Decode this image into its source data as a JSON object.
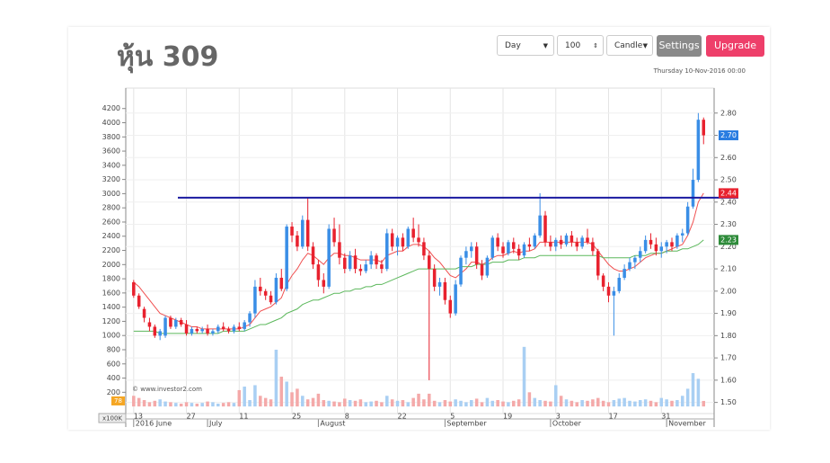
{
  "title": "หุ้น 309",
  "controls": {
    "interval": "Day",
    "count": "100",
    "style": "Candle",
    "settings": "Settings",
    "upgrade": "Upgrade"
  },
  "date": "Thursday 10-Nov-2016 00:00",
  "chart_data": {
    "type": "candlestick",
    "watermark": "© www.investor2.com",
    "volume_unit": "x100K",
    "xlim": [
      -1.5,
      110
    ],
    "ylim": [
      1.45,
      2.9
    ],
    "y2lim": [
      -100,
      4450
    ],
    "grid": true,
    "up_color": "#3a8ee6",
    "down_color": "#e8212e",
    "volume_up_color": "#a9cff3",
    "volume_down_color": "#f4a9a9",
    "xticks": [
      {
        "value": 0,
        "label": "13"
      },
      {
        "value": 10,
        "label": "27"
      },
      {
        "value": 20,
        "label": "11"
      },
      {
        "value": 30,
        "label": "25"
      },
      {
        "value": 40,
        "label": "8"
      },
      {
        "value": 50,
        "label": "22"
      },
      {
        "value": 60,
        "label": "5"
      },
      {
        "value": 70,
        "label": "19"
      },
      {
        "value": 80,
        "label": "3"
      },
      {
        "value": 90,
        "label": "17"
      },
      {
        "value": 100,
        "label": "31"
      }
    ],
    "month_ticks": [
      {
        "value": 0,
        "label": "2016 June"
      },
      {
        "value": 14,
        "label": "July"
      },
      {
        "value": 35,
        "label": "August"
      },
      {
        "value": 59,
        "label": "September"
      },
      {
        "value": 79,
        "label": "October"
      },
      {
        "value": 101,
        "label": "November"
      }
    ],
    "yticks": [
      {
        "value": 1.5,
        "label": "1.50"
      },
      {
        "value": 1.6,
        "label": "1.60"
      },
      {
        "value": 1.7,
        "label": "1.70"
      },
      {
        "value": 1.8,
        "label": "1.80"
      },
      {
        "value": 1.9,
        "label": "1.90"
      },
      {
        "value": 2.0,
        "label": "2.00"
      },
      {
        "value": 2.1,
        "label": "2.10"
      },
      {
        "value": 2.2,
        "label": "2.20"
      },
      {
        "value": 2.3,
        "label": "2.30"
      },
      {
        "value": 2.4,
        "label": "2.40"
      },
      {
        "value": 2.5,
        "label": "2.50"
      },
      {
        "value": 2.6,
        "label": "2.60"
      },
      {
        "value": 2.7,
        "label": "2.70"
      },
      {
        "value": 2.8,
        "label": "2.80"
      }
    ],
    "y2ticks": [
      200,
      400,
      600,
      800,
      1000,
      1200,
      1400,
      1600,
      1800,
      2000,
      2200,
      2400,
      2600,
      2800,
      3000,
      3200,
      3400,
      3600,
      3800,
      4000,
      4200
    ],
    "hline": {
      "value": 2.42,
      "color": "#1a1aa0"
    },
    "price_tags": [
      {
        "value": 2.7,
        "label": "2.70",
        "color": "#2a7de1"
      },
      {
        "value": 2.44,
        "label": "2.44",
        "color": "#e8212e"
      },
      {
        "value": 2.23,
        "label": "2.23",
        "color": "#2e8b3a"
      }
    ],
    "volume_tag": 78,
    "candles": [
      [
        2.04,
        2.05,
        1.97,
        1.98
      ],
      [
        1.98,
        1.99,
        1.92,
        1.93
      ],
      [
        1.92,
        1.93,
        1.86,
        1.88
      ],
      [
        1.86,
        1.88,
        1.82,
        1.84
      ],
      [
        1.84,
        1.85,
        1.79,
        1.8
      ],
      [
        1.8,
        1.83,
        1.78,
        1.82
      ],
      [
        1.8,
        1.89,
        1.79,
        1.88
      ],
      [
        1.88,
        1.89,
        1.83,
        1.84
      ],
      [
        1.84,
        1.88,
        1.83,
        1.87
      ],
      [
        1.87,
        1.88,
        1.84,
        1.85
      ],
      [
        1.85,
        1.87,
        1.8,
        1.81
      ],
      [
        1.81,
        1.84,
        1.8,
        1.83
      ],
      [
        1.83,
        1.84,
        1.81,
        1.82
      ],
      [
        1.82,
        1.84,
        1.81,
        1.83
      ],
      [
        1.83,
        1.85,
        1.8,
        1.81
      ],
      [
        1.81,
        1.83,
        1.8,
        1.82
      ],
      [
        1.82,
        1.85,
        1.81,
        1.84
      ],
      [
        1.84,
        1.86,
        1.82,
        1.83
      ],
      [
        1.83,
        1.84,
        1.81,
        1.82
      ],
      [
        1.82,
        1.85,
        1.81,
        1.84
      ],
      [
        1.84,
        1.86,
        1.82,
        1.83
      ],
      [
        1.83,
        1.87,
        1.82,
        1.86
      ],
      [
        1.86,
        1.91,
        1.84,
        1.9
      ],
      [
        1.9,
        2.05,
        1.88,
        2.02
      ],
      [
        2.02,
        2.06,
        1.98,
        2.0
      ],
      [
        2.0,
        2.01,
        1.96,
        1.98
      ],
      [
        1.98,
        2.0,
        1.94,
        1.95
      ],
      [
        1.95,
        2.08,
        1.94,
        2.06
      ],
      [
        2.06,
        2.1,
        2.0,
        2.01
      ],
      [
        2.01,
        2.3,
        2.0,
        2.29
      ],
      [
        2.29,
        2.31,
        2.22,
        2.25
      ],
      [
        2.25,
        2.27,
        2.18,
        2.2
      ],
      [
        2.2,
        2.34,
        2.19,
        2.32
      ],
      [
        2.32,
        2.42,
        2.18,
        2.2
      ],
      [
        2.2,
        2.22,
        2.1,
        2.12
      ],
      [
        2.12,
        2.14,
        2.02,
        2.05
      ],
      [
        2.05,
        2.08,
        1.99,
        2.02
      ],
      [
        2.02,
        2.3,
        2.01,
        2.28
      ],
      [
        2.28,
        2.33,
        2.2,
        2.22
      ],
      [
        2.22,
        2.3,
        2.12,
        2.15
      ],
      [
        2.15,
        2.17,
        2.08,
        2.1
      ],
      [
        2.1,
        2.18,
        2.09,
        2.16
      ],
      [
        2.16,
        2.19,
        2.08,
        2.1
      ],
      [
        2.1,
        2.12,
        2.07,
        2.09
      ],
      [
        2.09,
        2.14,
        2.08,
        2.12
      ],
      [
        2.12,
        2.18,
        2.1,
        2.16
      ],
      [
        2.16,
        2.17,
        2.1,
        2.12
      ],
      [
        2.12,
        2.14,
        2.08,
        2.1
      ],
      [
        2.1,
        2.28,
        2.09,
        2.26
      ],
      [
        2.26,
        2.28,
        2.18,
        2.2
      ],
      [
        2.2,
        2.25,
        2.16,
        2.24
      ],
      [
        2.24,
        2.26,
        2.18,
        2.2
      ],
      [
        2.2,
        2.29,
        2.19,
        2.28
      ],
      [
        2.28,
        2.33,
        2.22,
        2.24
      ],
      [
        2.24,
        2.3,
        2.2,
        2.22
      ],
      [
        2.22,
        2.24,
        2.14,
        2.16
      ],
      [
        2.16,
        2.18,
        1.6,
        2.1
      ],
      [
        2.1,
        2.12,
        2.0,
        2.02
      ],
      [
        2.02,
        2.06,
        1.98,
        2.04
      ],
      [
        2.04,
        2.06,
        1.94,
        1.96
      ],
      [
        1.96,
        1.98,
        1.88,
        1.9
      ],
      [
        1.9,
        2.05,
        1.89,
        2.03
      ],
      [
        2.03,
        2.16,
        2.02,
        2.15
      ],
      [
        2.15,
        2.2,
        2.12,
        2.18
      ],
      [
        2.18,
        2.22,
        2.15,
        2.2
      ],
      [
        2.2,
        2.22,
        2.1,
        2.12
      ],
      [
        2.12,
        2.14,
        2.05,
        2.07
      ],
      [
        2.07,
        2.16,
        2.06,
        2.15
      ],
      [
        2.15,
        2.25,
        2.14,
        2.24
      ],
      [
        2.24,
        2.26,
        2.18,
        2.2
      ],
      [
        2.2,
        2.22,
        2.15,
        2.17
      ],
      [
        2.17,
        2.23,
        2.16,
        2.22
      ],
      [
        2.22,
        2.24,
        2.17,
        2.19
      ],
      [
        2.19,
        2.21,
        2.14,
        2.16
      ],
      [
        2.16,
        2.22,
        2.15,
        2.21
      ],
      [
        2.21,
        2.24,
        2.18,
        2.2
      ],
      [
        2.2,
        2.26,
        2.19,
        2.25
      ],
      [
        2.25,
        2.44,
        2.24,
        2.34
      ],
      [
        2.34,
        2.36,
        2.2,
        2.22
      ],
      [
        2.22,
        2.25,
        2.18,
        2.2
      ],
      [
        2.2,
        2.24,
        2.18,
        2.23
      ],
      [
        2.23,
        2.25,
        2.19,
        2.21
      ],
      [
        2.21,
        2.26,
        2.2,
        2.25
      ],
      [
        2.25,
        2.27,
        2.2,
        2.22
      ],
      [
        2.22,
        2.24,
        2.18,
        2.2
      ],
      [
        2.2,
        2.25,
        2.19,
        2.24
      ],
      [
        2.24,
        2.28,
        2.21,
        2.22
      ],
      [
        2.22,
        2.24,
        2.16,
        2.18
      ],
      [
        2.18,
        2.19,
        2.05,
        2.07
      ],
      [
        2.07,
        2.08,
        2.0,
        2.02
      ],
      [
        2.02,
        2.04,
        1.95,
        1.98
      ],
      [
        1.98,
        2.02,
        1.8,
        2.0
      ],
      [
        2.0,
        2.08,
        1.99,
        2.06
      ],
      [
        2.06,
        2.12,
        2.05,
        2.1
      ],
      [
        2.1,
        2.15,
        2.09,
        2.13
      ],
      [
        2.13,
        2.16,
        2.1,
        2.15
      ],
      [
        2.15,
        2.2,
        2.13,
        2.18
      ],
      [
        2.18,
        2.25,
        2.17,
        2.23
      ],
      [
        2.23,
        2.26,
        2.19,
        2.21
      ],
      [
        2.21,
        2.24,
        2.16,
        2.18
      ],
      [
        2.18,
        2.22,
        2.15,
        2.2
      ],
      [
        2.2,
        2.23,
        2.17,
        2.22
      ],
      [
        2.22,
        2.24,
        2.18,
        2.2
      ],
      [
        2.2,
        2.26,
        2.19,
        2.25
      ],
      [
        2.25,
        2.28,
        2.22,
        2.26
      ],
      [
        2.26,
        2.4,
        2.25,
        2.38
      ],
      [
        2.38,
        2.55,
        2.37,
        2.5
      ],
      [
        2.5,
        2.8,
        2.49,
        2.77
      ],
      [
        2.77,
        2.78,
        2.66,
        2.7
      ]
    ],
    "volume": [
      150,
      120,
      90,
      60,
      80,
      100,
      70,
      60,
      50,
      40,
      60,
      50,
      40,
      50,
      70,
      60,
      40,
      50,
      60,
      50,
      230,
      280,
      90,
      300,
      150,
      120,
      100,
      800,
      420,
      350,
      200,
      250,
      150,
      100,
      120,
      180,
      90,
      80,
      70,
      60,
      110,
      90,
      80,
      100,
      60,
      70,
      80,
      60,
      150,
      100,
      80,
      90,
      60,
      120,
      180,
      100,
      180,
      80,
      60,
      90,
      70,
      100,
      80,
      60,
      90,
      110,
      60,
      120,
      80,
      90,
      70,
      60,
      80,
      100,
      840,
      200,
      120,
      90,
      80,
      70,
      300,
      150,
      100,
      80,
      60,
      90,
      80,
      100,
      120,
      80,
      60,
      90,
      110,
      120,
      80,
      70,
      90,
      100,
      80,
      60,
      120,
      100,
      80,
      90,
      150,
      250,
      470,
      390,
      78
    ],
    "ma_fast": {
      "color": "#f05050",
      "values": [
        2.04,
        2.02,
        1.99,
        1.96,
        1.93,
        1.9,
        1.89,
        1.88,
        1.87,
        1.86,
        1.85,
        1.84,
        1.84,
        1.83,
        1.83,
        1.83,
        1.83,
        1.83,
        1.83,
        1.83,
        1.83,
        1.84,
        1.85,
        1.88,
        1.91,
        1.92,
        1.93,
        1.95,
        1.97,
        2.03,
        2.07,
        2.1,
        2.14,
        2.17,
        2.16,
        2.14,
        2.12,
        2.15,
        2.17,
        2.17,
        2.16,
        2.16,
        2.15,
        2.14,
        2.14,
        2.14,
        2.14,
        2.13,
        2.16,
        2.17,
        2.18,
        2.18,
        2.2,
        2.21,
        2.21,
        2.2,
        2.18,
        2.15,
        2.13,
        2.1,
        2.07,
        2.06,
        2.08,
        2.1,
        2.13,
        2.13,
        2.12,
        2.13,
        2.15,
        2.16,
        2.16,
        2.17,
        2.18,
        2.17,
        2.18,
        2.18,
        2.19,
        2.22,
        2.22,
        2.22,
        2.22,
        2.22,
        2.22,
        2.22,
        2.22,
        2.22,
        2.22,
        2.21,
        2.18,
        2.15,
        2.12,
        2.1,
        2.09,
        2.09,
        2.1,
        2.11,
        2.13,
        2.15,
        2.16,
        2.17,
        2.17,
        2.18,
        2.19,
        2.2,
        2.21,
        2.25,
        2.31,
        2.4,
        2.44
      ]
    },
    "ma_slow": {
      "color": "#5cb85c",
      "values": [
        1.82,
        1.82,
        1.82,
        1.82,
        1.82,
        1.81,
        1.81,
        1.81,
        1.81,
        1.81,
        1.81,
        1.81,
        1.81,
        1.81,
        1.81,
        1.81,
        1.81,
        1.82,
        1.82,
        1.82,
        1.82,
        1.82,
        1.83,
        1.84,
        1.85,
        1.85,
        1.86,
        1.87,
        1.88,
        1.9,
        1.91,
        1.92,
        1.94,
        1.95,
        1.96,
        1.96,
        1.97,
        1.98,
        1.99,
        1.99,
        2.0,
        2.0,
        2.01,
        2.01,
        2.02,
        2.02,
        2.03,
        2.03,
        2.04,
        2.05,
        2.06,
        2.07,
        2.08,
        2.09,
        2.1,
        2.1,
        2.1,
        2.1,
        2.1,
        2.1,
        2.1,
        2.1,
        2.11,
        2.11,
        2.11,
        2.12,
        2.12,
        2.12,
        2.13,
        2.13,
        2.13,
        2.14,
        2.14,
        2.14,
        2.15,
        2.15,
        2.15,
        2.16,
        2.16,
        2.16,
        2.16,
        2.16,
        2.16,
        2.16,
        2.16,
        2.16,
        2.16,
        2.16,
        2.16,
        2.15,
        2.15,
        2.15,
        2.15,
        2.15,
        2.15,
        2.16,
        2.16,
        2.16,
        2.17,
        2.17,
        2.17,
        2.18,
        2.18,
        2.18,
        2.19,
        2.19,
        2.2,
        2.21,
        2.23
      ]
    }
  }
}
